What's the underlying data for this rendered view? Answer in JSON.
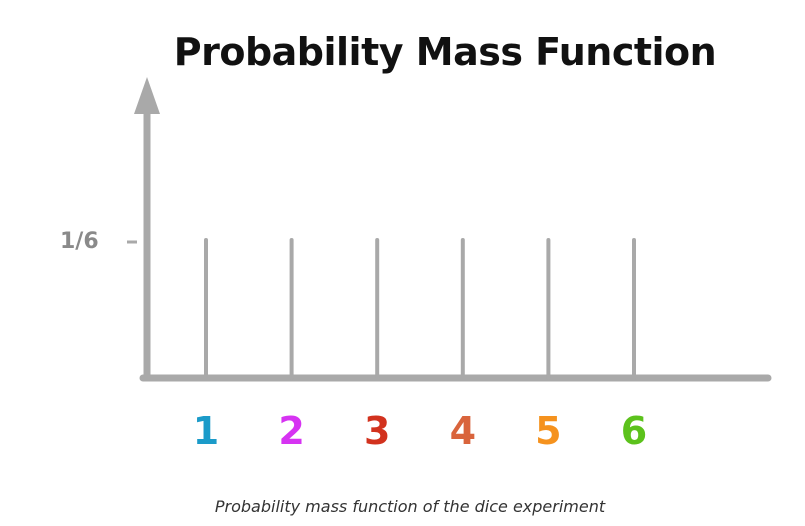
{
  "chart_data": {
    "type": "bar",
    "title": "Probability Mass Function",
    "categories": [
      "1",
      "2",
      "3",
      "4",
      "5",
      "6"
    ],
    "values": [
      0.1667,
      0.1667,
      0.1667,
      0.1667,
      0.1667,
      0.1667
    ],
    "y_tick_label": "1/6",
    "y_tick_value": 0.1667,
    "category_colors": [
      "#1b9bc9",
      "#d633f2",
      "#d2321e",
      "#d9643c",
      "#f5921e",
      "#5cc21c"
    ],
    "axis_color": "#a9a9a9",
    "stem_color": "#a9a9a9",
    "grid": false,
    "legend": "none",
    "caption": "Probability mass function of the dice experiment"
  }
}
